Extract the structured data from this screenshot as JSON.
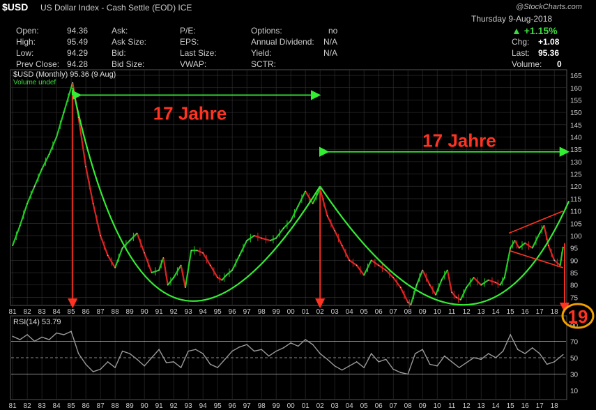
{
  "header": {
    "symbol": "$USD",
    "description": "US Dollar Index - Cash Settle (EOD)",
    "exchange": "ICE",
    "brand": "@StockCharts.com",
    "date": "Thursday  9-Aug-2018"
  },
  "quote": {
    "open": {
      "label": "Open:",
      "value": "94.36"
    },
    "high": {
      "label": "High:",
      "value": "95.49"
    },
    "low": {
      "label": "Low:",
      "value": "94.29"
    },
    "prev_close": {
      "label": "Prev Close:",
      "value": "94.28"
    },
    "ask": "Ask:",
    "ask_size": "Ask Size:",
    "bid": "Bid:",
    "bid_size": "Bid Size:",
    "pe": "P/E:",
    "eps": "EPS:",
    "last_size": "Last Size:",
    "vwap": "VWAP:",
    "options": {
      "label": "Options:",
      "value": "no"
    },
    "annual_dividend": {
      "label": "Annual Dividend:",
      "value": "N/A"
    },
    "yield": {
      "label": "Yield:",
      "value": "N/A"
    },
    "sctr": "SCTR:",
    "change_pct": "▲ +1.15%",
    "chg": {
      "label": "Chg:",
      "value": "+1.08"
    },
    "last": {
      "label": "Last:",
      "value": "95.36"
    },
    "volume": {
      "label": "Volume:",
      "value": "0"
    }
  },
  "colors": {
    "background": "#000000",
    "up": "#22cc22",
    "down": "#dd2222",
    "arc": "#33ee33",
    "annotation": "#ff3322",
    "grid": "#333333",
    "rsi": "#999999"
  },
  "chart_data": [
    {
      "type": "line",
      "legend": "$USD (Monthly) 95.36 (9 Aug)",
      "legend2": "Volume undef",
      "x_ticks": [
        "81",
        "82",
        "83",
        "84",
        "85",
        "86",
        "87",
        "88",
        "89",
        "90",
        "91",
        "92",
        "93",
        "94",
        "95",
        "96",
        "97",
        "98",
        "99",
        "00",
        "01",
        "02",
        "03",
        "04",
        "05",
        "06",
        "07",
        "08",
        "09",
        "10",
        "11",
        "12",
        "13",
        "14",
        "15",
        "16",
        "17",
        "18"
      ],
      "y_ticks": [
        165,
        160,
        155,
        150,
        145,
        140,
        135,
        130,
        125,
        120,
        115,
        110,
        105,
        100,
        95,
        90,
        85,
        80,
        75
      ],
      "ylim": [
        72,
        167
      ],
      "x": [
        1981.0,
        1981.5,
        1982.0,
        1982.5,
        1983.0,
        1983.5,
        1984.0,
        1984.5,
        1985.1,
        1985.5,
        1986.0,
        1986.5,
        1987.0,
        1987.5,
        1988.0,
        1988.5,
        1989.0,
        1989.5,
        1990.0,
        1990.5,
        1991.0,
        1991.3,
        1991.6,
        1992.0,
        1992.5,
        1992.8,
        1993.2,
        1993.6,
        1994.0,
        1994.5,
        1995.0,
        1995.3,
        1995.6,
        1996.0,
        1996.5,
        1997.0,
        1997.5,
        1998.0,
        1998.6,
        1999.0,
        1999.5,
        2000.0,
        2000.5,
        2001.0,
        2001.5,
        2002.0,
        2002.5,
        2003.0,
        2003.5,
        2004.0,
        2004.5,
        2005.0,
        2005.5,
        2006.0,
        2006.5,
        2007.0,
        2007.5,
        2008.0,
        2008.2,
        2008.6,
        2009.0,
        2009.5,
        2009.9,
        2010.3,
        2010.7,
        2011.0,
        2011.3,
        2011.6,
        2012.0,
        2012.5,
        2013.0,
        2013.5,
        2014.0,
        2014.3,
        2014.6,
        2015.0,
        2015.3,
        2015.6,
        2016.0,
        2016.5,
        2017.0,
        2017.3,
        2017.6,
        2018.0,
        2018.4,
        2018.6
      ],
      "y": [
        96,
        104,
        113,
        120,
        127,
        133,
        140,
        150,
        162,
        148,
        128,
        113,
        100,
        92,
        87,
        95,
        98,
        101,
        93,
        85,
        86,
        91,
        80,
        83,
        88,
        79,
        94,
        94,
        93,
        88,
        83,
        82,
        84,
        86,
        92,
        98,
        100,
        99,
        98,
        99,
        103,
        106,
        112,
        118,
        113,
        119,
        108,
        102,
        96,
        90,
        88,
        84,
        90,
        88,
        86,
        83,
        79,
        73,
        72,
        80,
        86,
        80,
        76,
        82,
        86,
        77,
        75,
        74,
        79,
        83,
        80,
        82,
        81,
        80,
        83,
        95,
        98,
        95,
        97,
        95,
        101,
        104,
        96,
        90,
        88,
        95.36
      ],
      "arcs": [
        {
          "from": [
            1985.1,
            160
          ],
          "via": [
            1992.0,
            75
          ],
          "to": [
            2002.0,
            120
          ]
        },
        {
          "from": [
            2002.0,
            120
          ],
          "via": [
            2011.5,
            72
          ],
          "to": [
            2019.0,
            114
          ]
        }
      ],
      "annotations": {
        "label1": "17 Jahre",
        "label2": "17 Jahre",
        "year_circle": "19"
      }
    },
    {
      "type": "line",
      "name": "RSI(14) 53.79",
      "y_ticks": [
        90,
        70,
        50,
        30,
        10
      ],
      "ylim": [
        0,
        100
      ],
      "reference_lines": [
        70,
        50,
        30
      ],
      "x": [
        1981.0,
        1981.5,
        1982.0,
        1982.5,
        1983.0,
        1983.5,
        1984.0,
        1984.5,
        1985.0,
        1985.5,
        1986.0,
        1986.5,
        1987.0,
        1987.5,
        1988.0,
        1988.5,
        1989.0,
        1989.5,
        1990.0,
        1990.5,
        1991.0,
        1991.5,
        1992.0,
        1992.5,
        1993.0,
        1993.5,
        1994.0,
        1994.5,
        1995.0,
        1995.5,
        1996.0,
        1996.5,
        1997.0,
        1997.5,
        1998.0,
        1998.5,
        1999.0,
        1999.5,
        2000.0,
        2000.5,
        2001.0,
        2001.5,
        2002.0,
        2002.5,
        2003.0,
        2003.5,
        2004.0,
        2004.5,
        2005.0,
        2005.5,
        2006.0,
        2006.5,
        2007.0,
        2007.5,
        2008.0,
        2008.5,
        2009.0,
        2009.5,
        2010.0,
        2010.5,
        2011.0,
        2011.5,
        2012.0,
        2012.5,
        2013.0,
        2013.5,
        2014.0,
        2014.5,
        2015.0,
        2015.5,
        2016.0,
        2016.5,
        2017.0,
        2017.5,
        2018.0,
        2018.6
      ],
      "y": [
        76,
        72,
        78,
        70,
        75,
        72,
        80,
        78,
        82,
        55,
        42,
        33,
        36,
        45,
        38,
        58,
        55,
        48,
        40,
        50,
        60,
        44,
        45,
        38,
        58,
        60,
        55,
        42,
        38,
        48,
        58,
        63,
        66,
        58,
        60,
        52,
        58,
        62,
        68,
        64,
        72,
        66,
        55,
        48,
        40,
        35,
        40,
        45,
        38,
        55,
        45,
        48,
        36,
        32,
        30,
        55,
        60,
        42,
        40,
        52,
        45,
        38,
        44,
        50,
        48,
        55,
        50,
        58,
        78,
        60,
        55,
        62,
        55,
        42,
        45,
        53.79
      ]
    }
  ]
}
